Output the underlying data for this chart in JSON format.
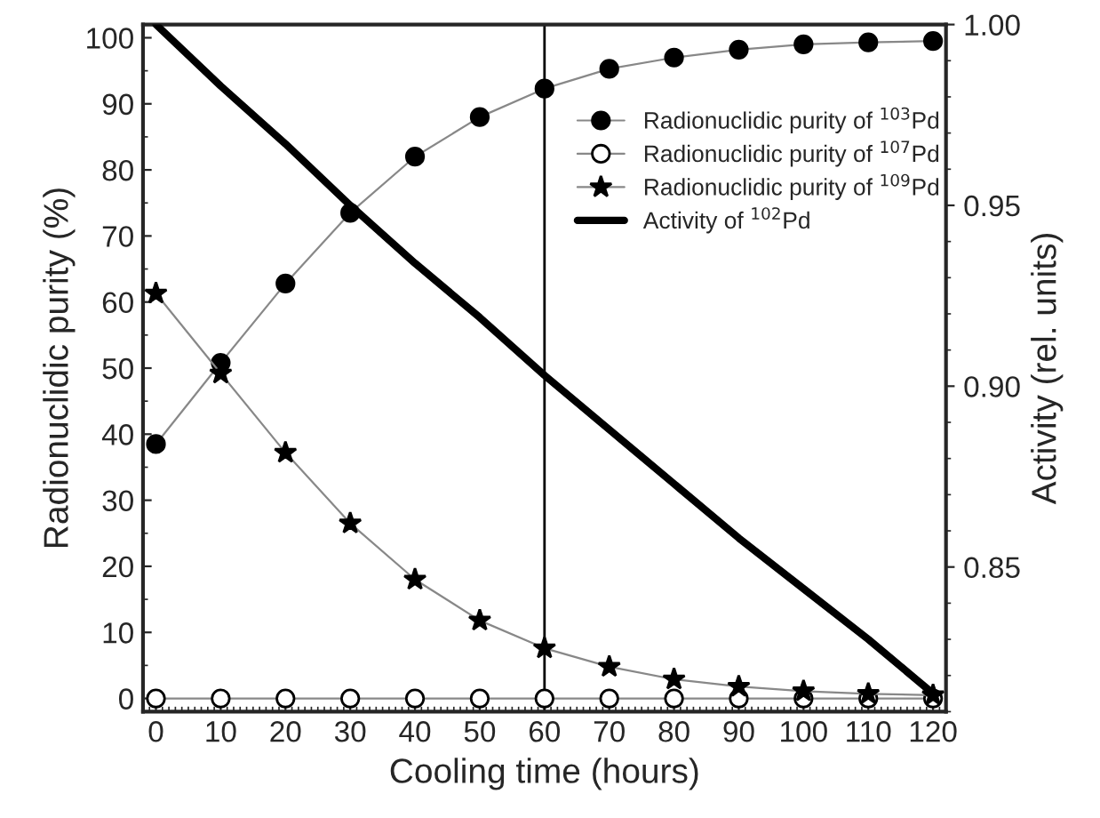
{
  "chart_data": {
    "type": "line",
    "xlabel": "Cooling time (hours)",
    "ylabel": "Radionuclidic purity (%)",
    "y2label": "Activity (rel. units)",
    "x": [
      0,
      10,
      20,
      30,
      40,
      50,
      60,
      70,
      80,
      90,
      100,
      110,
      120
    ],
    "series": [
      {
        "name": "Radionuclidic purity of $^{103}$Pd",
        "color": "#000000",
        "marker": "circle",
        "values": [
          38.5,
          50.8,
          62.8,
          73.5,
          82,
          88,
          92.3,
          95.3,
          97,
          98.2,
          99,
          99.3,
          99.5
        ]
      },
      {
        "name": "Radionuclidic purity of $^{107}$Pd",
        "color": "#ffffff",
        "marker": "circle",
        "values": [
          0,
          0,
          0,
          0,
          0,
          0,
          0,
          0,
          0,
          0,
          0,
          0,
          0
        ]
      },
      {
        "name": "Radionuclidic purity of $^{109}$Pd",
        "color": "#000000",
        "marker": "star",
        "values": [
          61.3,
          49.2,
          37.2,
          26.5,
          18,
          11.8,
          7.6,
          4.8,
          2.9,
          1.8,
          1.1,
          0.7,
          0.5
        ]
      },
      {
        "name": "Activity of $^{102}$Pd",
        "color": "#000000",
        "marker": "none",
        "axis": "y2",
        "values": [
          1.0,
          0.983,
          0.967,
          0.95,
          0.934,
          0.919,
          0.903,
          0.888,
          0.873,
          0.858,
          0.844,
          0.83,
          0.815
        ]
      }
    ],
    "xlim": [
      -2,
      122
    ],
    "xticks": [
      0,
      10,
      20,
      30,
      40,
      50,
      60,
      70,
      80,
      90,
      100,
      110,
      120
    ],
    "ylim": [
      -2,
      102
    ],
    "yticks": [
      0,
      10,
      20,
      30,
      40,
      50,
      60,
      70,
      80,
      90,
      100
    ],
    "y2lim": [
      0.81,
      1.0
    ],
    "y2ticks": [
      0.85,
      {
        "value": 0.9,
        "label": "0.90"
      },
      0.95,
      {
        "value": 1.0,
        "label": "1.00"
      }
    ],
    "ref_lines": [
      {
        "axis": "x",
        "value": 60,
        "color": "#000000"
      }
    ],
    "legend": "top right",
    "grid": false
  }
}
